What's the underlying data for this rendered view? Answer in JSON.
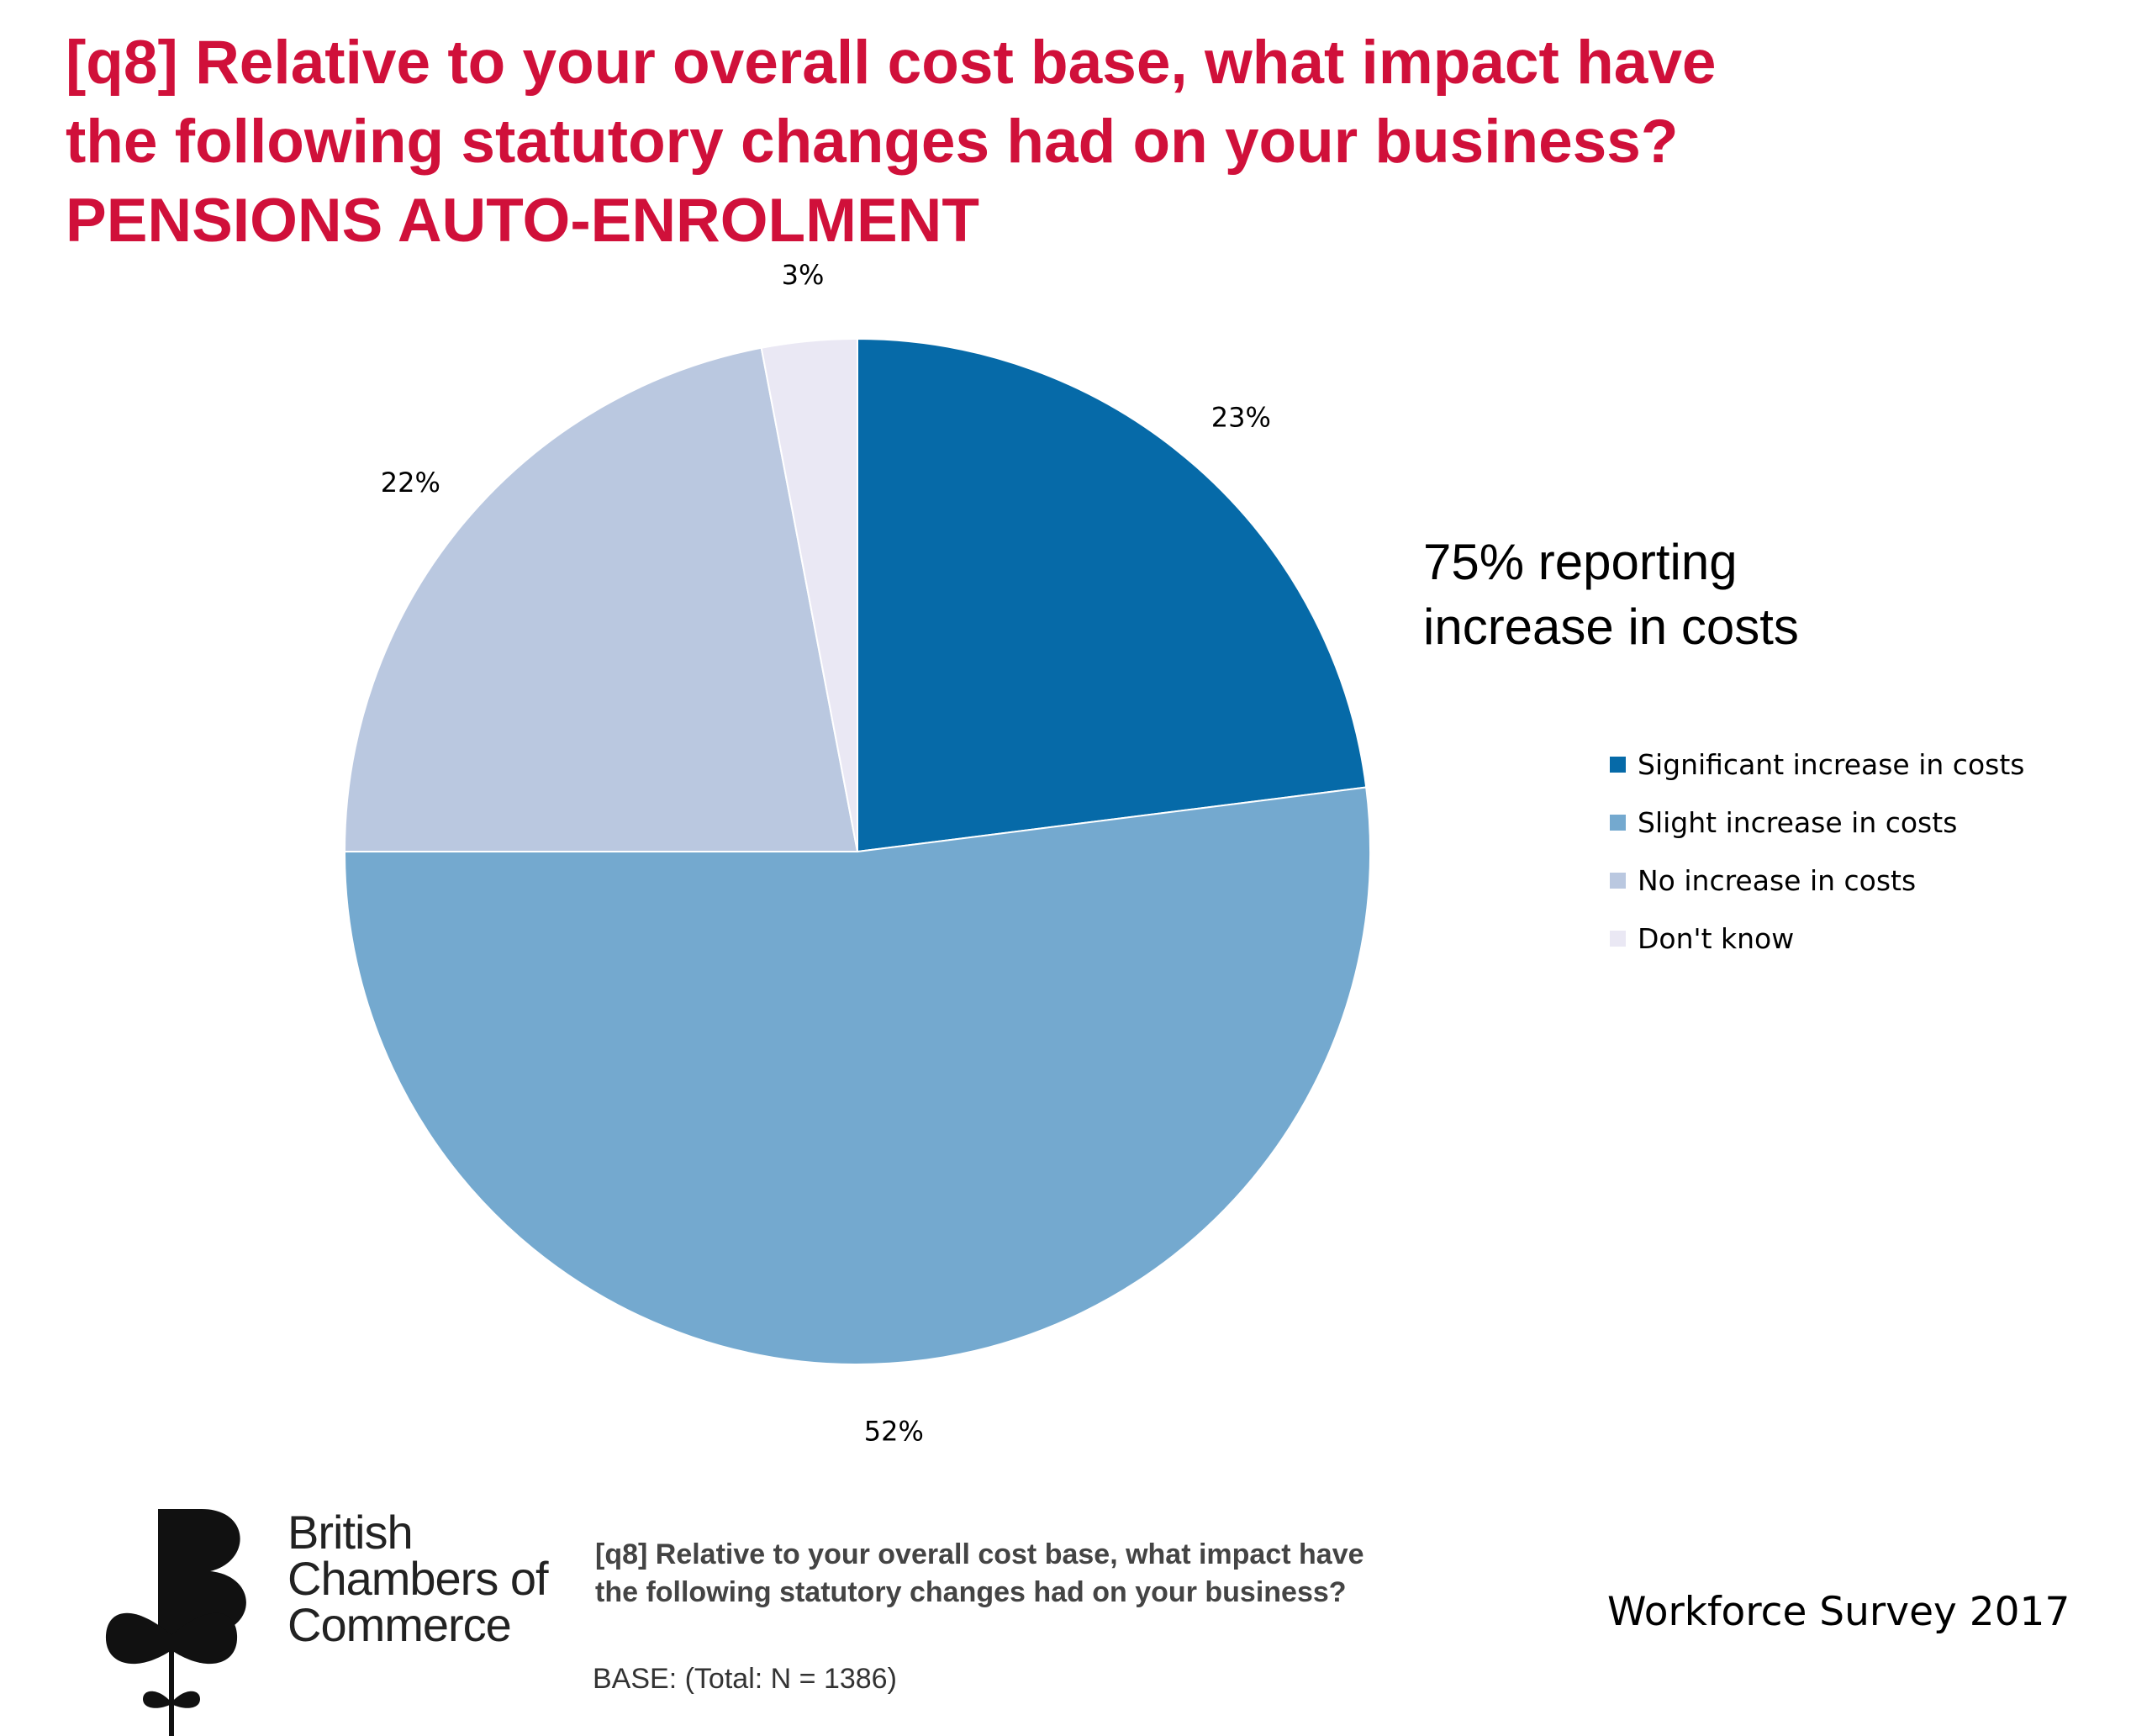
{
  "title": {
    "lines": [
      "[q8] Relative to your overall cost base, what impact have",
      "the following statutory changes had on your business?",
      "PENSIONS AUTO-ENROLMENT"
    ]
  },
  "chart_data": {
    "type": "pie",
    "categories": [
      "Significant increase in costs",
      "Slight increase in costs",
      "No increase in costs",
      "Don't know"
    ],
    "values": [
      23,
      52,
      22,
      3
    ],
    "value_labels": [
      "23%",
      "52%",
      "22%",
      "3%"
    ],
    "colors": [
      "#066aa8",
      "#74a9cf",
      "#bac8e0",
      "#eae8f4"
    ],
    "start_angle": "12 o'clock",
    "direction": "clockwise",
    "legend_position": "right"
  },
  "callout": {
    "lines": [
      "75% reporting",
      "increase in costs"
    ]
  },
  "legend": {
    "items": [
      {
        "label": "Significant increase in costs",
        "color": "#066aa8"
      },
      {
        "label": "Slight increase in costs",
        "color": "#74a9cf"
      },
      {
        "label": "No increase in costs",
        "color": "#bac8e0"
      },
      {
        "label": "Don't know",
        "color": "#eae8f4"
      }
    ]
  },
  "logo": {
    "lines": [
      "British",
      "Chambers of",
      "Commerce"
    ]
  },
  "footer": {
    "question_lines": [
      "[q8] Relative to your overall cost base, what impact have",
      "the following statutory changes had on your business?"
    ],
    "base": "BASE: (Total: N = 1386)",
    "survey": "Workforce Survey 2017"
  }
}
